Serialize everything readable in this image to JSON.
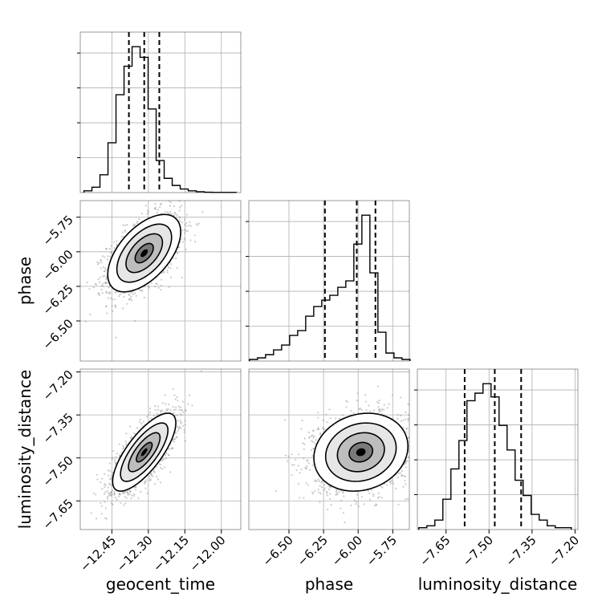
{
  "chart_data": {
    "type": "corner",
    "parameters": [
      "geocent_time",
      "phase",
      "luminosity_distance"
    ],
    "grid": true,
    "colors": {
      "line": "#000000",
      "grid": "#b0b0b0",
      "scatter": "#8c8c8c"
    },
    "ticks": {
      "geocent_time": {
        "values": [
          -12.45,
          -12.3,
          -12.15,
          -12.0
        ],
        "labels": [
          "−12.45",
          "−12.30",
          "−12.15",
          "−12.00"
        ]
      },
      "phase": {
        "values": [
          -6.5,
          -6.25,
          -6.0,
          -5.75
        ],
        "labels": [
          "−6.50",
          "−6.25",
          "−6.00",
          "−5.75"
        ]
      },
      "luminosity_distance": {
        "values": [
          -7.65,
          -7.5,
          -7.35,
          -7.2
        ],
        "labels": [
          "−7.65",
          "−7.50",
          "−7.35",
          "−7.20"
        ]
      }
    },
    "ranges": {
      "geocent_time": [
        -12.58,
        -11.92
      ],
      "phase": [
        -6.79,
        -5.63
      ],
      "luminosity_distance": [
        -7.75,
        -7.19
      ]
    },
    "diagonal": [
      {
        "parameter": "geocent_time",
        "bin_edges": [
          -12.565,
          -12.532,
          -12.499,
          -12.466,
          -12.433,
          -12.4,
          -12.367,
          -12.334,
          -12.301,
          -12.268,
          -12.235,
          -12.202,
          -12.169,
          -12.136,
          -12.103,
          -12.07,
          -12.037,
          -12.004,
          -11.971,
          -11.938
        ],
        "counts": [
          1,
          3,
          10,
          28,
          55,
          71,
          82,
          76,
          47,
          18,
          8,
          4,
          2,
          1,
          0.5,
          0.2,
          0.1,
          0.1,
          0.1
        ],
        "quantiles": [
          -12.38,
          -12.317,
          -12.255
        ]
      },
      {
        "parameter": "phase",
        "bin_edges": [
          -6.785,
          -6.727,
          -6.669,
          -6.611,
          -6.553,
          -6.495,
          -6.437,
          -6.379,
          -6.321,
          -6.263,
          -6.205,
          -6.147,
          -6.089,
          -6.031,
          -5.973,
          -5.915,
          -5.857,
          -5.799,
          -5.741,
          -5.683,
          -5.625
        ],
        "counts": [
          1,
          2,
          4,
          7,
          10,
          16,
          19,
          28,
          34,
          38,
          41,
          46,
          50,
          73,
          91,
          55,
          18,
          5,
          2,
          1
        ],
        "quantiles": [
          -6.24,
          -6.01,
          -5.875
        ]
      },
      {
        "parameter": "luminosity_distance",
        "bin_edges": [
          -7.745,
          -7.717,
          -7.689,
          -7.661,
          -7.633,
          -7.605,
          -7.577,
          -7.549,
          -7.521,
          -7.493,
          -7.465,
          -7.437,
          -7.409,
          -7.381,
          -7.353,
          -7.325,
          -7.297,
          -7.269,
          -7.241,
          -7.213
        ],
        "counts": [
          1,
          2,
          5,
          16,
          32,
          47,
          68,
          72,
          77,
          70,
          55,
          42,
          26,
          18,
          8,
          5,
          2,
          1,
          1
        ],
        "quantiles": [
          -7.585,
          -7.48,
          -7.388
        ]
      }
    ],
    "pairs": [
      {
        "x": "geocent_time",
        "y": "phase",
        "center": [
          -12.317,
          -6.01
        ],
        "sigma": [
          0.075,
          0.14
        ],
        "corr": 0.55,
        "n_points": 1800
      },
      {
        "x": "geocent_time",
        "y": "luminosity_distance",
        "center": [
          -12.317,
          -7.48
        ],
        "sigma": [
          0.065,
          0.068
        ],
        "corr": 0.75,
        "n_points": 1800
      },
      {
        "x": "phase",
        "y": "luminosity_distance",
        "center": [
          -5.98,
          -7.48
        ],
        "sigma": [
          0.17,
          0.068
        ],
        "corr": 0.15,
        "n_points": 1800
      }
    ],
    "contour_levels_sigma": [
      0.5,
      1.0,
      1.5,
      2.0
    ]
  },
  "labels": {
    "geocent_time": "geocent_time",
    "phase": "phase",
    "luminosity_distance": "luminosity_distance"
  }
}
